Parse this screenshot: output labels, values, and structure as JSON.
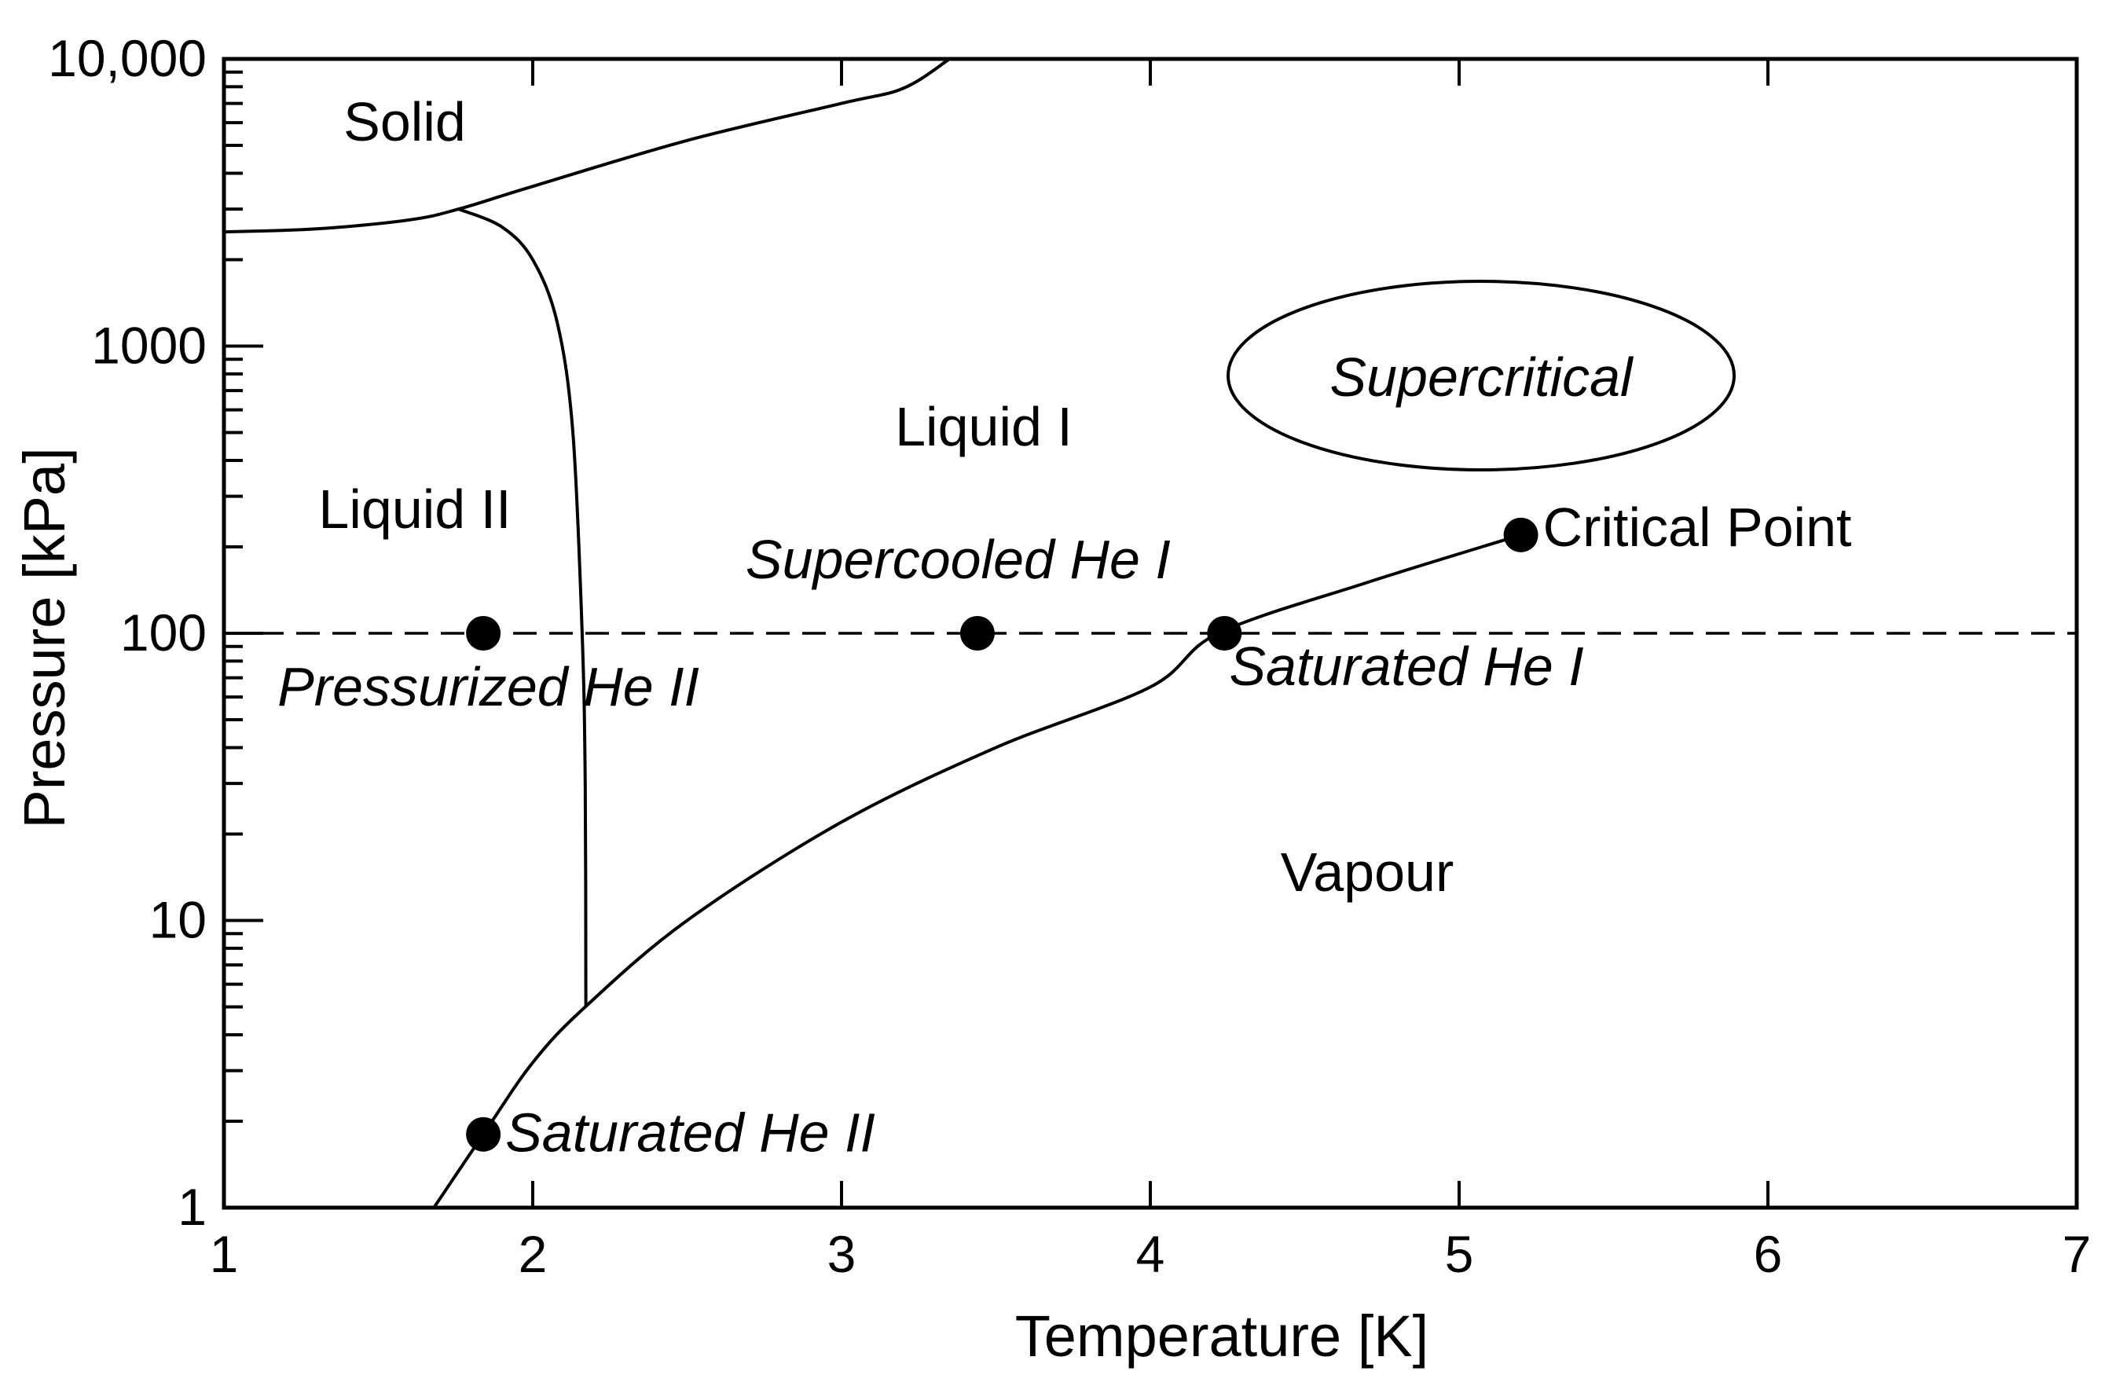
{
  "chart_data": {
    "type": "line",
    "title": "",
    "xlabel": "Temperature [K]",
    "ylabel": "Pressure [kPa]",
    "xlim": [
      1,
      7
    ],
    "ylim": [
      1,
      10000
    ],
    "yscale": "log",
    "grid": false,
    "x_ticks": [
      {
        "value": 1,
        "label": "1"
      },
      {
        "value": 2,
        "label": "2"
      },
      {
        "value": 3,
        "label": "3"
      },
      {
        "value": 4,
        "label": "4"
      },
      {
        "value": 5,
        "label": "5"
      },
      {
        "value": 6,
        "label": "6"
      },
      {
        "value": 7,
        "label": "7"
      }
    ],
    "y_ticks": [
      {
        "value": 1,
        "label": "1"
      },
      {
        "value": 10,
        "label": "10"
      },
      {
        "value": 100,
        "label": "100"
      },
      {
        "value": 1000,
        "label": "1000"
      },
      {
        "value": 10000,
        "label": "10,000"
      }
    ],
    "curves": [
      {
        "id": "melting-curve",
        "points": [
          [
            1.0,
            2500
          ],
          [
            1.3,
            2560
          ],
          [
            1.6,
            2750
          ],
          [
            1.76,
            3000
          ],
          [
            2.0,
            3600
          ],
          [
            2.5,
            5200
          ],
          [
            3.0,
            7000
          ],
          [
            3.2,
            7900
          ],
          [
            3.35,
            10000
          ]
        ]
      },
      {
        "id": "lambda-line",
        "points": [
          [
            1.76,
            3000
          ],
          [
            1.9,
            2600
          ],
          [
            2.0,
            2000
          ],
          [
            2.08,
            1200
          ],
          [
            2.13,
            500
          ],
          [
            2.16,
            100
          ],
          [
            2.17,
            30
          ],
          [
            2.172,
            5
          ]
        ]
      },
      {
        "id": "vapour-pressure-curve",
        "points": [
          [
            1.68,
            1.0
          ],
          [
            1.84,
            1.8
          ],
          [
            2.0,
            3.2
          ],
          [
            2.17,
            5.0
          ],
          [
            2.5,
            10
          ],
          [
            3.0,
            22
          ],
          [
            3.5,
            40
          ],
          [
            4.0,
            65
          ],
          [
            4.22,
            100
          ],
          [
            4.7,
            150
          ],
          [
            5.2,
            220
          ]
        ]
      }
    ],
    "reference_line": {
      "y": 100,
      "style": "dashed"
    },
    "points": [
      {
        "id": "pressurized-he-ii",
        "x": 1.84,
        "y": 100,
        "label": "Pressurized He II",
        "italic": true
      },
      {
        "id": "supercooled-he-i",
        "x": 3.44,
        "y": 100,
        "label": "Supercooled He I",
        "italic": true
      },
      {
        "id": "saturated-he-i",
        "x": 4.24,
        "y": 100,
        "label": "Saturated He I",
        "italic": true
      },
      {
        "id": "critical-point",
        "x": 5.2,
        "y": 220,
        "label": "Critical Point",
        "italic": false
      },
      {
        "id": "saturated-he-ii",
        "x": 1.84,
        "y": 1.8,
        "label": "Saturated He II",
        "italic": true
      }
    ],
    "regions": [
      {
        "id": "solid",
        "label": "Solid",
        "x": 1.6,
        "y": 5000,
        "italic": false
      },
      {
        "id": "liquid-ii",
        "label": "Liquid II",
        "x": 1.6,
        "y": 200,
        "italic": false
      },
      {
        "id": "liquid-i",
        "label": "Liquid I",
        "x": 3.45,
        "y": 400,
        "italic": false
      },
      {
        "id": "vapour",
        "label": "Vapour",
        "x": 4.7,
        "y": 9,
        "italic": false
      },
      {
        "id": "supercritical",
        "label": "Supercritical",
        "x": 5.1,
        "y": 1000,
        "italic": true,
        "enclosed": true
      }
    ]
  }
}
